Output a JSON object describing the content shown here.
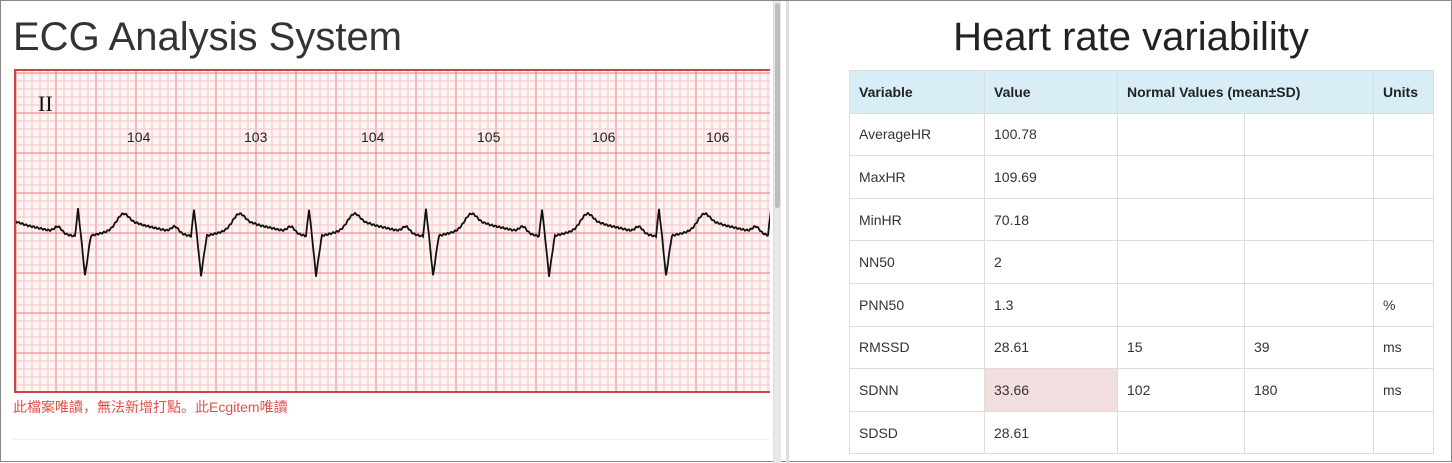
{
  "left": {
    "title": "ECG Analysis System",
    "lead": "II",
    "heart_rates": [
      "104",
      "103",
      "104",
      "105",
      "106",
      "106"
    ],
    "note": "此檔案唯讀，無法新增打點。此Ecgitem唯讀"
  },
  "right": {
    "title": "Heart rate variability",
    "headers": [
      "Variable",
      "Value",
      "Normal Values (mean±SD)",
      "Units"
    ],
    "rows": [
      [
        "AverageHR",
        "100.78",
        "",
        "",
        ""
      ],
      [
        "MaxHR",
        "109.69",
        "",
        "",
        ""
      ],
      [
        "MinHR",
        "70.18",
        "",
        "",
        ""
      ],
      [
        "NN50",
        "2",
        "",
        "",
        ""
      ],
      [
        "PNN50",
        "1.3",
        "",
        "",
        "%"
      ],
      [
        "RMSSD",
        "28.61",
        "15",
        "39",
        "ms"
      ],
      [
        "SDNN",
        "33.66",
        "102",
        "180",
        "ms"
      ],
      [
        "SDSD",
        "28.61",
        "",
        "",
        ""
      ]
    ],
    "highlighted_cell": "SDNN value",
    "highlight_color": "#f2dede"
  }
}
